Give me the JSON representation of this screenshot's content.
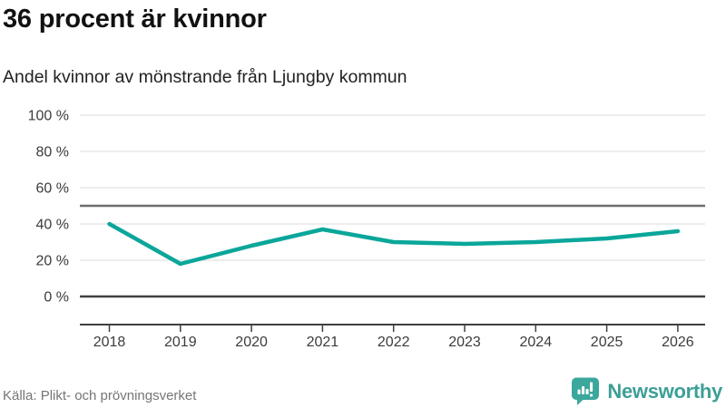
{
  "header": {
    "title": "36 procent är kvinnor",
    "subtitle": "Andel kvinnor av mönstrande från Ljungby kommun"
  },
  "footer": {
    "source": "Källa: Plikt- och prövningsverket",
    "brand": "Newsworthy"
  },
  "colors": {
    "line": "#0aa69a",
    "brand_text": "#3d9f97",
    "brand_icon": "#3ba79d",
    "grid": "#e2e2e2",
    "reference_line": "#6e6e6e",
    "zero_line": "#3f3f3f",
    "axis": "#3f3f3f",
    "tick_text": "#3c3c3c"
  },
  "chart_data": {
    "type": "line",
    "title": "36 procent är kvinnor",
    "subtitle": "Andel kvinnor av mönstrande från Ljungby kommun",
    "categories": [
      "2018",
      "2019",
      "2020",
      "2021",
      "2022",
      "2023",
      "2024",
      "2025",
      "2026"
    ],
    "series": [
      {
        "name": "Andel kvinnor",
        "values": [
          40,
          18,
          28,
          37,
          30,
          29,
          30,
          32,
          36
        ]
      }
    ],
    "ylim": [
      0,
      100
    ],
    "yticks": [
      0,
      20,
      40,
      60,
      80,
      100
    ],
    "ytick_suffix": " %",
    "reference_line": 50,
    "grid": "horizontal",
    "legend": "none",
    "source": "Källa: Plikt- och prövningsverket"
  }
}
